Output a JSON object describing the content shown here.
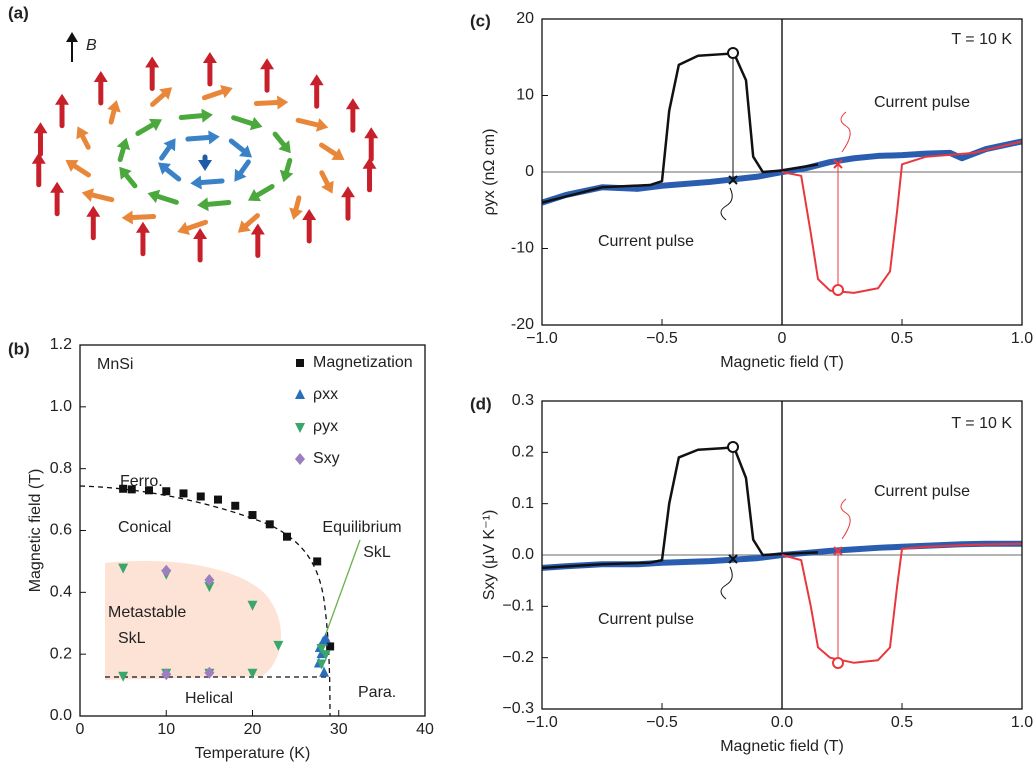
{
  "illustration": {
    "label": "(a)",
    "field_label": "B"
  },
  "chart_data": [
    {
      "type": "scatter",
      "panel_label": "(b)",
      "x_label": "Temperature (K)",
      "y_label": "Magnetic field (T)",
      "xlim": [
        0,
        40
      ],
      "xticks": [
        0,
        10,
        20,
        30,
        40
      ],
      "ylim": [
        0,
        1.2
      ],
      "yticks": [
        {
          "value": 0,
          "label": "0.0"
        },
        0.2,
        0.4,
        0.6,
        0.8,
        {
          "value": 1,
          "label": "1.0"
        },
        1.2
      ],
      "legend": "upper right",
      "annotations": [
        {
          "text": "MnSi",
          "color": "#222222"
        },
        {
          "text": "Ferro.",
          "color": "#222222"
        },
        {
          "text": "Conical",
          "color": "#2e3192"
        },
        {
          "text": "Metastable",
          "color": "#e8383d"
        },
        {
          "text": "SkL",
          "color": "#e8383d"
        },
        {
          "text": "Equilibrium",
          "color": "#6ab04c"
        },
        {
          "text": "SkL",
          "color": "#6ab04c"
        },
        {
          "text": "Helical",
          "color": "#222222"
        },
        {
          "text": "Para.",
          "color": "#222222"
        }
      ],
      "series": [
        {
          "name": "Magnetization",
          "color": "#111111",
          "marker": "square",
          "x": [
            5,
            6,
            8,
            10,
            12,
            14,
            16,
            18,
            20,
            22,
            24,
            27.5,
            29
          ],
          "values": [
            0.735,
            0.733,
            0.73,
            0.727,
            0.72,
            0.71,
            0.7,
            0.68,
            0.65,
            0.62,
            0.58,
            0.5,
            0.225
          ]
        },
        {
          "name": "ρxx",
          "color": "#2a6ebb",
          "marker": "triangle-up",
          "x": [
            27.7,
            28,
            28.2,
            27.8,
            28.3,
            28.5
          ],
          "values": [
            0.17,
            0.2,
            0.24,
            0.22,
            0.14,
            0.25
          ]
        },
        {
          "name": "ρyx",
          "color": "#3aa66a",
          "marker": "triangle-down",
          "x": [
            5,
            10,
            15,
            20,
            23,
            28,
            5,
            10,
            15,
            20,
            28.5,
            28
          ],
          "values": [
            0.48,
            0.46,
            0.42,
            0.36,
            0.23,
            0.22,
            0.13,
            0.14,
            0.14,
            0.14,
            0.2,
            0.17
          ]
        },
        {
          "name": "Sxy",
          "color": "#9b7fc0",
          "marker": "diamond",
          "x": [
            10,
            15,
            10,
            15
          ],
          "values": [
            0.47,
            0.44,
            0.135,
            0.14
          ]
        }
      ]
    },
    {
      "type": "line",
      "panel_label": "(c)",
      "x_label": "Magnetic field (T)",
      "y_label": "ρyx (nΩ cm)",
      "xlim": [
        -1,
        1
      ],
      "xticks": [
        {
          "value": -1,
          "label": "−1.0"
        },
        {
          "value": -0.5,
          "label": "−0.5"
        },
        0,
        0.5,
        {
          "value": 1,
          "label": "1.0"
        }
      ],
      "ylim": [
        -20,
        20
      ],
      "yticks": [
        -20,
        -10,
        0,
        10,
        20
      ],
      "annotations": [
        {
          "text": "T = 10 K",
          "color": "#111111"
        },
        {
          "text": "Current pulse",
          "color": "#e8383d"
        },
        {
          "text": "Current pulse",
          "color": "#111111"
        }
      ],
      "series": [
        {
          "color": "#2a5db0",
          "width": 6,
          "x": [
            -1,
            -0.9,
            -0.75,
            -0.6,
            -0.5,
            -0.3,
            -0.1,
            0,
            0.1,
            0.2,
            0.3,
            0.4,
            0.5,
            0.6,
            0.7,
            0.75,
            0.85,
            1
          ],
          "values": [
            -4,
            -3,
            -2,
            -2.2,
            -1.8,
            -1.3,
            -0.6,
            0,
            0.5,
            1.3,
            1.8,
            2.1,
            2.2,
            2.4,
            2.5,
            1.8,
            3,
            4
          ]
        },
        {
          "color": "#111111",
          "width": 2.5,
          "x": [
            -1,
            -0.75,
            -0.55,
            -0.5,
            -0.47,
            -0.43,
            -0.35,
            -0.25,
            -0.2,
            -0.15,
            -0.12,
            -0.08,
            0,
            0.15
          ],
          "values": [
            -4,
            -2,
            -1.7,
            -1.2,
            8,
            14,
            15.2,
            15.4,
            15.5,
            12,
            2,
            0,
            0.2,
            1
          ]
        },
        {
          "color": "#e8383d",
          "width": 2,
          "x": [
            0,
            0.08,
            0.12,
            0.15,
            0.2,
            0.3,
            0.4,
            0.45,
            0.48,
            0.5,
            0.6,
            0.8,
            1
          ],
          "values": [
            0,
            -0.5,
            -8,
            -14,
            -15.5,
            -15.8,
            -15.2,
            -13,
            -5,
            1,
            2,
            2.5,
            4
          ]
        }
      ]
    },
    {
      "type": "line",
      "panel_label": "(d)",
      "x_label": "Magnetic field (T)",
      "y_label": "Sxy (μV K⁻¹)",
      "xlim": [
        -1,
        1
      ],
      "xticks": [
        {
          "value": -1,
          "label": "−1.0"
        },
        {
          "value": -0.5,
          "label": "−0.5"
        },
        {
          "value": 0,
          "label": "0.0"
        },
        0.5,
        {
          "value": 1,
          "label": "1.0"
        }
      ],
      "ylim": [
        -0.3,
        0.3
      ],
      "yticks": [
        {
          "value": -0.3,
          "label": "−0.3"
        },
        {
          "value": -0.2,
          "label": "−0.2"
        },
        {
          "value": -0.1,
          "label": "−0.1"
        },
        {
          "value": 0,
          "label": "0.0"
        },
        0.1,
        0.2,
        0.3
      ],
      "annotations": [
        {
          "text": "T = 10 K",
          "color": "#111111"
        },
        {
          "text": "Current pulse",
          "color": "#e8383d"
        },
        {
          "text": "Current pulse",
          "color": "#111111"
        }
      ],
      "series": [
        {
          "color": "#2a5db0",
          "width": 6,
          "x": [
            -1,
            -0.9,
            -0.75,
            -0.6,
            -0.5,
            -0.3,
            -0.1,
            0,
            0.1,
            0.2,
            0.3,
            0.4,
            0.5,
            0.6,
            0.7,
            0.75,
            0.85,
            1
          ],
          "values": [
            -0.025,
            -0.022,
            -0.018,
            -0.018,
            -0.015,
            -0.012,
            -0.006,
            0,
            0.004,
            0.008,
            0.011,
            0.014,
            0.016,
            0.018,
            0.02,
            0.021,
            0.022,
            0.022
          ]
        },
        {
          "color": "#111111",
          "width": 2.5,
          "x": [
            -1,
            -0.75,
            -0.55,
            -0.5,
            -0.47,
            -0.43,
            -0.35,
            -0.25,
            -0.2,
            -0.15,
            -0.12,
            -0.08,
            0,
            0.15
          ],
          "values": [
            -0.025,
            -0.018,
            -0.015,
            -0.01,
            0.1,
            0.19,
            0.205,
            0.208,
            0.21,
            0.15,
            0.03,
            0,
            0.002,
            0.005
          ]
        },
        {
          "color": "#e8383d",
          "width": 2,
          "x": [
            0,
            0.08,
            0.12,
            0.15,
            0.2,
            0.3,
            0.4,
            0.45,
            0.48,
            0.5,
            0.6,
            0.8,
            1
          ],
          "values": [
            0,
            -0.01,
            -0.1,
            -0.18,
            -0.2,
            -0.21,
            -0.205,
            -0.18,
            -0.06,
            0.012,
            0.016,
            0.02,
            0.022
          ]
        }
      ]
    }
  ]
}
